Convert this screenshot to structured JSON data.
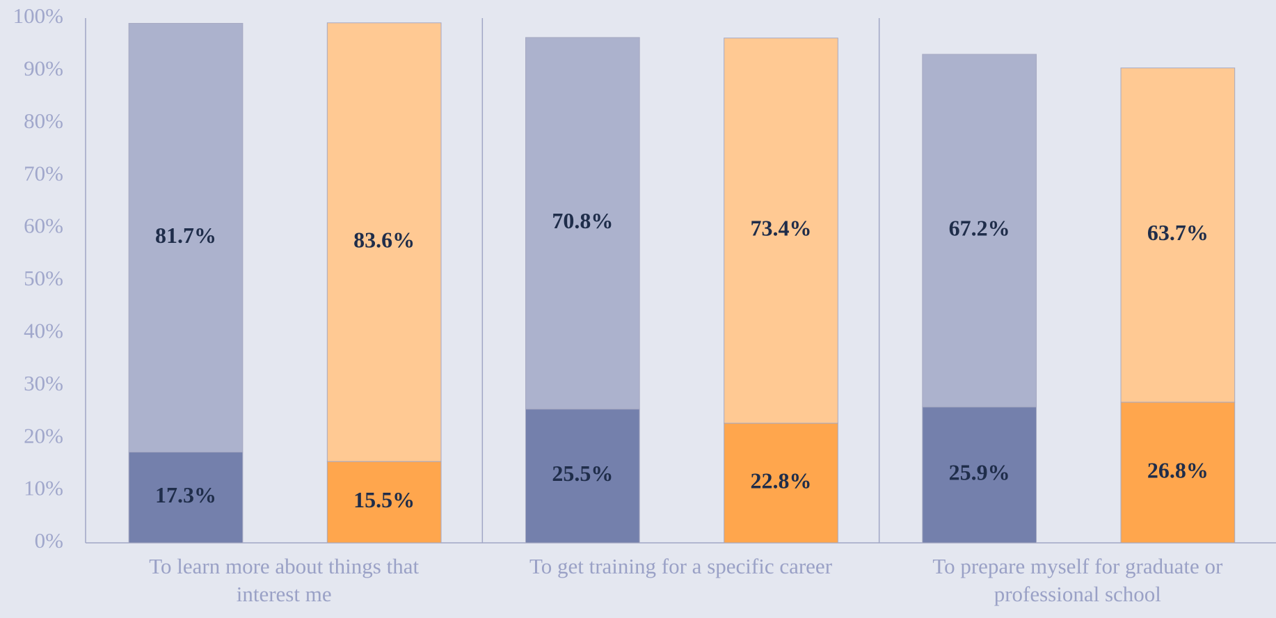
{
  "chart_data": {
    "type": "stacked-bar",
    "categories": [
      "To learn more about things that interest me",
      "To get training for a specific career",
      "To prepare myself for graduate or professional school"
    ],
    "series": [
      {
        "color": "#7480ac",
        "stack": 0,
        "values": [
          17.3,
          25.5,
          25.9
        ],
        "value_labels": [
          "17.3%",
          "25.5%",
          "25.9%"
        ]
      },
      {
        "color": "#acb2cd",
        "stack": 0,
        "values": [
          81.7,
          70.8,
          67.2
        ],
        "value_labels": [
          "81.7%",
          "70.8%",
          "67.2%"
        ]
      },
      {
        "color": "#ffa64d",
        "stack": 1,
        "values": [
          15.5,
          22.8,
          26.8
        ],
        "value_labels": [
          "15.5%",
          "22.8%",
          "26.8%"
        ]
      },
      {
        "color": "#ffc993",
        "stack": 1,
        "values": [
          83.6,
          73.4,
          63.7
        ],
        "value_labels": [
          "83.6%",
          "73.4%",
          "63.7%"
        ]
      }
    ],
    "ylim": [
      0,
      100
    ],
    "yticks": [
      {
        "value": 0,
        "label": "0%"
      },
      {
        "value": 10,
        "label": "10%"
      },
      {
        "value": 20,
        "label": "20%"
      },
      {
        "value": 30,
        "label": "30%"
      },
      {
        "value": 40,
        "label": "40%"
      },
      {
        "value": 50,
        "label": "50%"
      },
      {
        "value": 60,
        "label": "60%"
      },
      {
        "value": 70,
        "label": "70%"
      },
      {
        "value": 80,
        "label": "80%"
      },
      {
        "value": 90,
        "label": "90%"
      },
      {
        "value": 100,
        "label": "100%"
      }
    ],
    "grid": false
  }
}
